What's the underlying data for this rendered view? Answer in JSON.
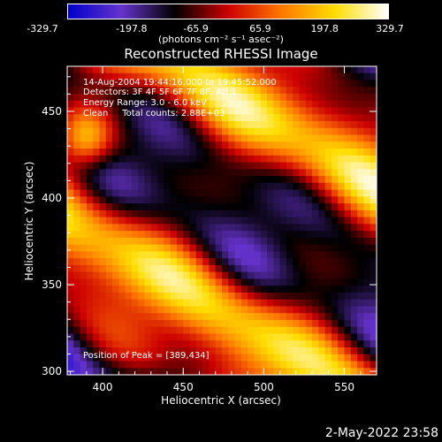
{
  "colorbar": {
    "ticks": [
      "-329.7",
      "-197.8",
      "-65.9",
      "65.9",
      "197.8",
      "329.7"
    ],
    "units": "(photons cm⁻² s⁻¹ asec⁻²)"
  },
  "title": "Reconstructed RHESSI Image",
  "annotations": {
    "time": "14-Aug-2004 19:44:16.000 to 19:45:52.000",
    "detectors": "Detectors: 3F 4F 5F 6F 7F 8F, Att 1",
    "energy": "Energy Range: 3.0 - 6.0 keV",
    "clean": "Clean     Total counts: 2.88E+03",
    "peak": "Position of Peak = [389,434]"
  },
  "footer": "2-May-2022 23:58",
  "chart_data": {
    "type": "heatmap",
    "title": "Reconstructed RHESSI Image",
    "xlabel": "Heliocentric X (arcsec)",
    "ylabel": "Heliocentric Y (arcsec)",
    "xlim": [
      378,
      570
    ],
    "ylim": [
      298,
      476
    ],
    "xticks": [
      "400",
      "450",
      "500",
      "550"
    ],
    "yticks": [
      "300",
      "350",
      "400",
      "450"
    ],
    "colorbar_range": [
      -329.7,
      329.7
    ],
    "peak_position": [
      389,
      434
    ],
    "grid_cols": 48,
    "grid_rows": 45,
    "colormap": [
      "#0000cc",
      "#6633cc",
      "#000000",
      "#cc0000",
      "#ff7700",
      "#ffdd00",
      "#ffffff"
    ]
  }
}
